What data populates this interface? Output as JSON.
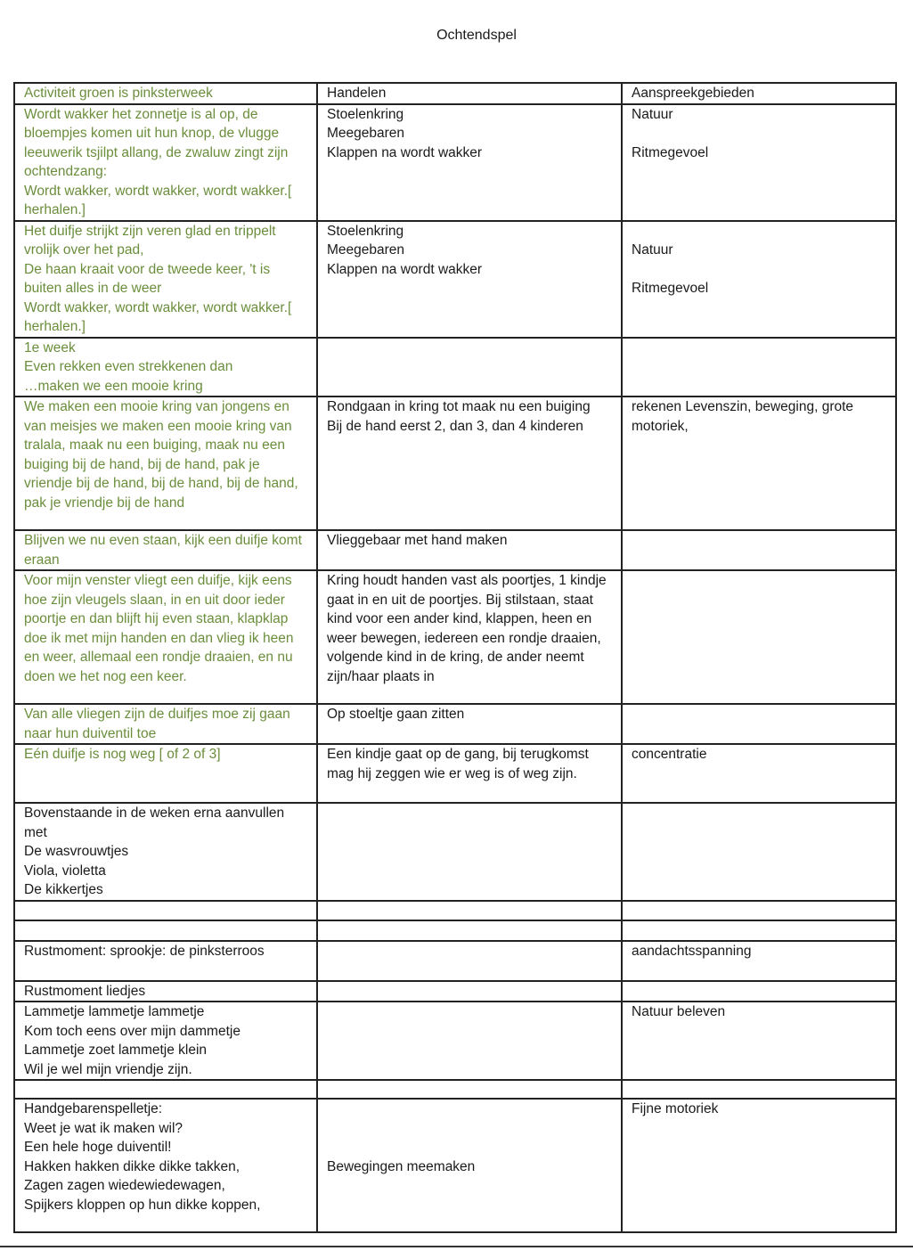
{
  "title": "Ochtendspel",
  "colors": {
    "green_text": "#6b8e3c",
    "text": "#1a1a1a"
  },
  "header": [
    "Activiteit groen is pinksterweek",
    "Handelen",
    "Aanspreekgebieden"
  ],
  "rows": [
    {
      "activity": "Wordt wakker het zonnetje is al op, de bloempjes komen uit hun knop, de vlugge leeuwerik tsjilpt allang, de zwaluw zingt zijn ochtendzang:\nWordt wakker, wordt wakker, wordt wakker.[ herhalen.]",
      "green": true,
      "action": "Stoelenkring\nMeegebaren\nKlappen na wordt wakker",
      "areas": "Natuur\n\nRitmegevoel"
    },
    {
      "activity": "Het duifje strijkt zijn veren glad en trippelt vrolijk over het pad,\nDe haan kraait voor de tweede keer, 't is buiten alles in de weer\nWordt wakker, wordt wakker, wordt wakker.[ herhalen.]",
      "green": true,
      "action": "Stoelenkring\nMeegebaren\nKlappen na wordt wakker",
      "areas": "\nNatuur\n\nRitmegevoel"
    },
    {
      "activity": "1e week\nEven rekken even strekkenen dan\n…maken we een mooie kring",
      "green": true,
      "action": "",
      "areas": ""
    },
    {
      "activity": "We maken een mooie kring van jongens en van meisjes we maken een mooie kring van tralala, maak nu een buiging, maak nu een buiging bij de hand, bij de hand, pak je vriendje bij de hand, bij de hand, bij de hand, pak je vriendje bij de hand",
      "green": true,
      "action": "Rondgaan in kring tot maak nu een buiging\nBij de hand eerst 2, dan 3, dan 4 kinderen",
      "areas": "rekenen Levenszin, beweging, grote motoriek,"
    },
    {
      "activity": "Blijven we nu even staan, kijk een duifje komt eraan",
      "green": true,
      "action": "Vlieggebaar met hand maken",
      "areas": ""
    },
    {
      "activity": "Voor mijn venster vliegt een duifje, kijk eens hoe zijn vleugels slaan, in en uit door ieder poortje en dan blijft hij even staan, klapklap doe ik met mijn handen en dan vlieg ik heen en weer, allemaal een rondje draaien, en nu doen we het nog een keer.",
      "green": true,
      "action": "Kring houdt handen vast als poortjes, 1 kindje gaat in en uit de poortjes. Bij stilstaan, staat kind voor een ander kind, klappen, heen en weer bewegen, iedereen een rondje draaien, volgende kind in de kring, de ander neemt zijn/haar plaats in",
      "areas": ""
    },
    {
      "activity": "Van alle vliegen zijn de duifjes moe zij gaan naar hun duiventil toe",
      "green": true,
      "action": "Op stoeltje gaan zitten",
      "areas": ""
    },
    {
      "activity": "Eén duifje is nog weg [ of 2 of 3]",
      "green": true,
      "action": "Een kindje gaat op de gang, bij terugkomst mag hij zeggen wie er weg is of weg zijn.",
      "areas": "concentratie"
    },
    {
      "activity": "Bovenstaande in de weken erna aanvullen met\nDe wasvrouwtjes\nViola, violetta\nDe kikkertjes",
      "green": false,
      "action": "",
      "areas": ""
    },
    {
      "activity": "",
      "green": false,
      "action": "",
      "areas": ""
    },
    {
      "activity": "",
      "green": false,
      "action": "",
      "areas": ""
    },
    {
      "activity": "Rustmoment: sprookje: de pinksterroos",
      "green": false,
      "action": "",
      "areas": "aandachtsspanning"
    },
    {
      "activity": "Rustmoment liedjes",
      "green": false,
      "action": "",
      "areas": ""
    },
    {
      "activity": "Lammetje lammetje lammetje\nKom toch eens over mijn dammetje\nLammetje zoet lammetje klein\nWil je wel mijn vriendje zijn.",
      "green": false,
      "action": "",
      "areas": "Natuur beleven"
    },
    {
      "activity": "",
      "green": false,
      "action": "",
      "areas": ""
    },
    {
      "activity": "Handgebarenspelletje:\nWeet je wat ik maken wil?\nEen hele hoge duiventil!\nHakken hakken dikke dikke takken,\nZagen zagen wiedewiedewagen,\nSpijkers kloppen op hun dikke koppen,",
      "green": false,
      "action": "\n\n\nBewegingen meemaken",
      "areas": "Fijne motoriek"
    }
  ]
}
